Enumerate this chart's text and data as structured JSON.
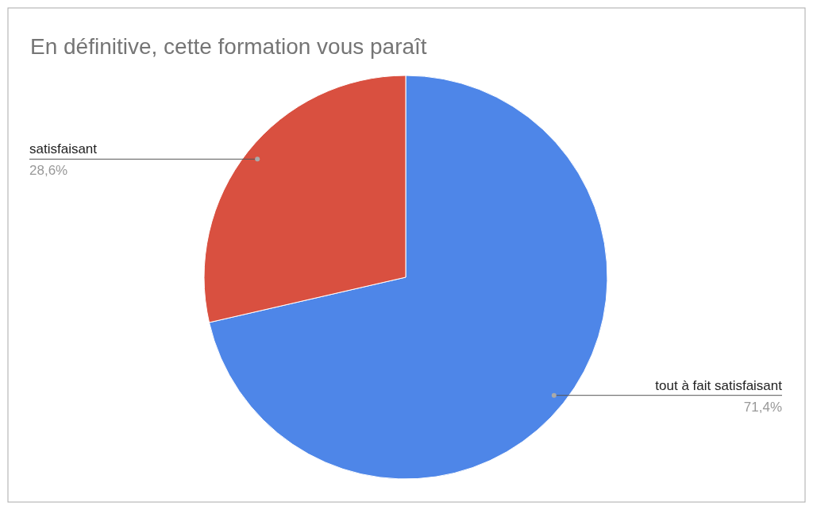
{
  "chart_data": {
    "type": "pie",
    "title": "En définitive, cette formation vous paraît",
    "categories": [
      "tout à fait satisfaisant",
      "satisfaisant"
    ],
    "values": [
      71.4,
      28.6
    ],
    "value_labels": [
      "71,4%",
      "28,6%"
    ],
    "colors": [
      "#4e86e8",
      "#d95040"
    ]
  }
}
